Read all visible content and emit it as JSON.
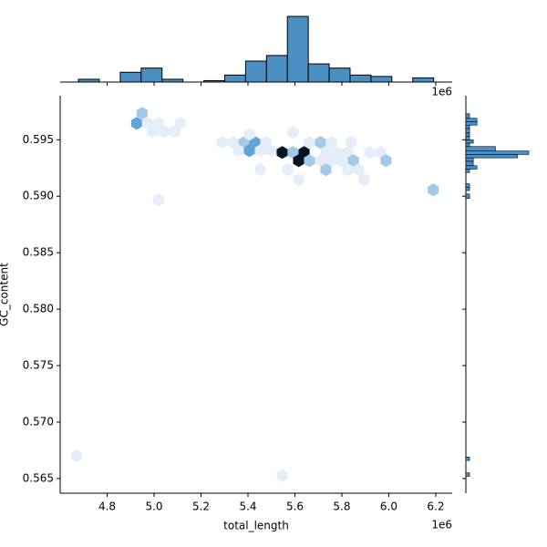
{
  "chart_data": {
    "type": "hexbin",
    "xlabel": "total_length",
    "ylabel": "GC_content",
    "x_offset_label": "1e6",
    "xlim": [
      4.6,
      6.27
    ],
    "ylim": [
      0.5637,
      0.5989
    ],
    "xticks": [
      4.8,
      {
        "value": 5,
        "label": "5.0"
      },
      5.2,
      5.4,
      5.6,
      5.8,
      {
        "value": 6,
        "label": "6.0"
      },
      6.2
    ],
    "yticks": [
      0.565,
      {
        "value": 0.57,
        "label": "0.570"
      },
      0.575,
      {
        "value": 0.58,
        "label": "0.580"
      },
      0.585,
      {
        "value": 0.59,
        "label": "0.590"
      },
      0.595
    ],
    "colors": [
      "#e3eef8",
      "#3f92cf",
      "#051420"
    ],
    "hist_color": "#4c8fc2",
    "x": [
      4.926,
      4.949,
      4.972,
      5.019,
      4.995,
      5.042,
      5.088,
      5.112,
      5.019,
      4.67,
      5.546,
      6.189,
      5.29,
      5.336,
      5.383,
      5.429,
      5.406,
      5.36,
      5.406,
      5.453,
      5.499,
      5.476,
      5.546,
      5.592,
      5.639,
      5.592,
      5.616,
      5.662,
      5.662,
      5.709,
      5.755,
      5.84,
      5.732,
      5.779,
      5.825,
      5.709,
      5.755,
      5.802,
      5.849,
      5.732,
      5.825,
      5.871,
      5.895,
      5.616,
      5.569,
      5.453,
      5.918,
      5.964,
      5.988
    ],
    "y": [
      0.59645,
      0.59734,
      0.59645,
      0.59645,
      0.59573,
      0.59573,
      0.59573,
      0.59645,
      0.58968,
      0.56702,
      0.56524,
      0.59056,
      0.59476,
      0.59476,
      0.59476,
      0.59476,
      0.59548,
      0.59403,
      0.59403,
      0.59403,
      0.59403,
      0.59476,
      0.59387,
      0.59387,
      0.59387,
      0.59565,
      0.59315,
      0.59315,
      0.59476,
      0.59476,
      0.59476,
      0.59476,
      0.59387,
      0.59387,
      0.59387,
      0.59315,
      0.59315,
      0.59315,
      0.59315,
      0.59234,
      0.59234,
      0.59234,
      0.59145,
      0.59145,
      0.59234,
      0.59234,
      0.59387,
      0.59387,
      0.59315
    ],
    "counts": [
      3,
      2,
      1,
      1,
      1,
      1,
      1,
      1,
      1,
      1,
      1,
      2,
      1,
      1,
      2,
      3,
      1,
      1,
      3,
      1,
      1,
      1,
      6,
      2,
      6,
      1,
      6,
      2,
      1,
      2,
      1,
      1,
      1,
      1,
      1,
      1,
      1,
      1,
      2,
      2,
      1,
      1,
      1,
      1,
      1,
      1,
      1,
      1,
      2
    ],
    "top_hist": {
      "bins": [
        4.678,
        4.767,
        4.856,
        4.945,
        5.034,
        5.123,
        5.212,
        5.301,
        5.39,
        5.479,
        5.568,
        5.657,
        5.746,
        5.835,
        5.924,
        6.013,
        6.102,
        6.191
      ],
      "counts": [
        2,
        0,
        7,
        10,
        2,
        0,
        1,
        5,
        15,
        19,
        47,
        13,
        10,
        5,
        4,
        0,
        3
      ]
    },
    "right_hist": {
      "bins": [
        0.5652,
        0.5655,
        0.5666,
        0.5669,
        0.5898,
        0.5902,
        0.5905,
        0.5908,
        0.5911,
        0.5915,
        0.5918,
        0.5921,
        0.5924,
        0.5927,
        0.5931,
        0.5934,
        0.5937,
        0.594,
        0.5944,
        0.5947,
        0.595,
        0.5953,
        0.5956,
        0.596,
        0.5963,
        0.5966,
        0.5969,
        0.5973
      ],
      "counts": [
        1,
        0,
        1,
        0,
        1,
        0,
        1,
        1,
        0,
        0,
        0,
        1,
        3,
        2,
        2,
        14,
        17,
        8,
        1,
        2,
        1,
        1,
        1,
        1,
        3,
        3,
        1
      ]
    }
  }
}
